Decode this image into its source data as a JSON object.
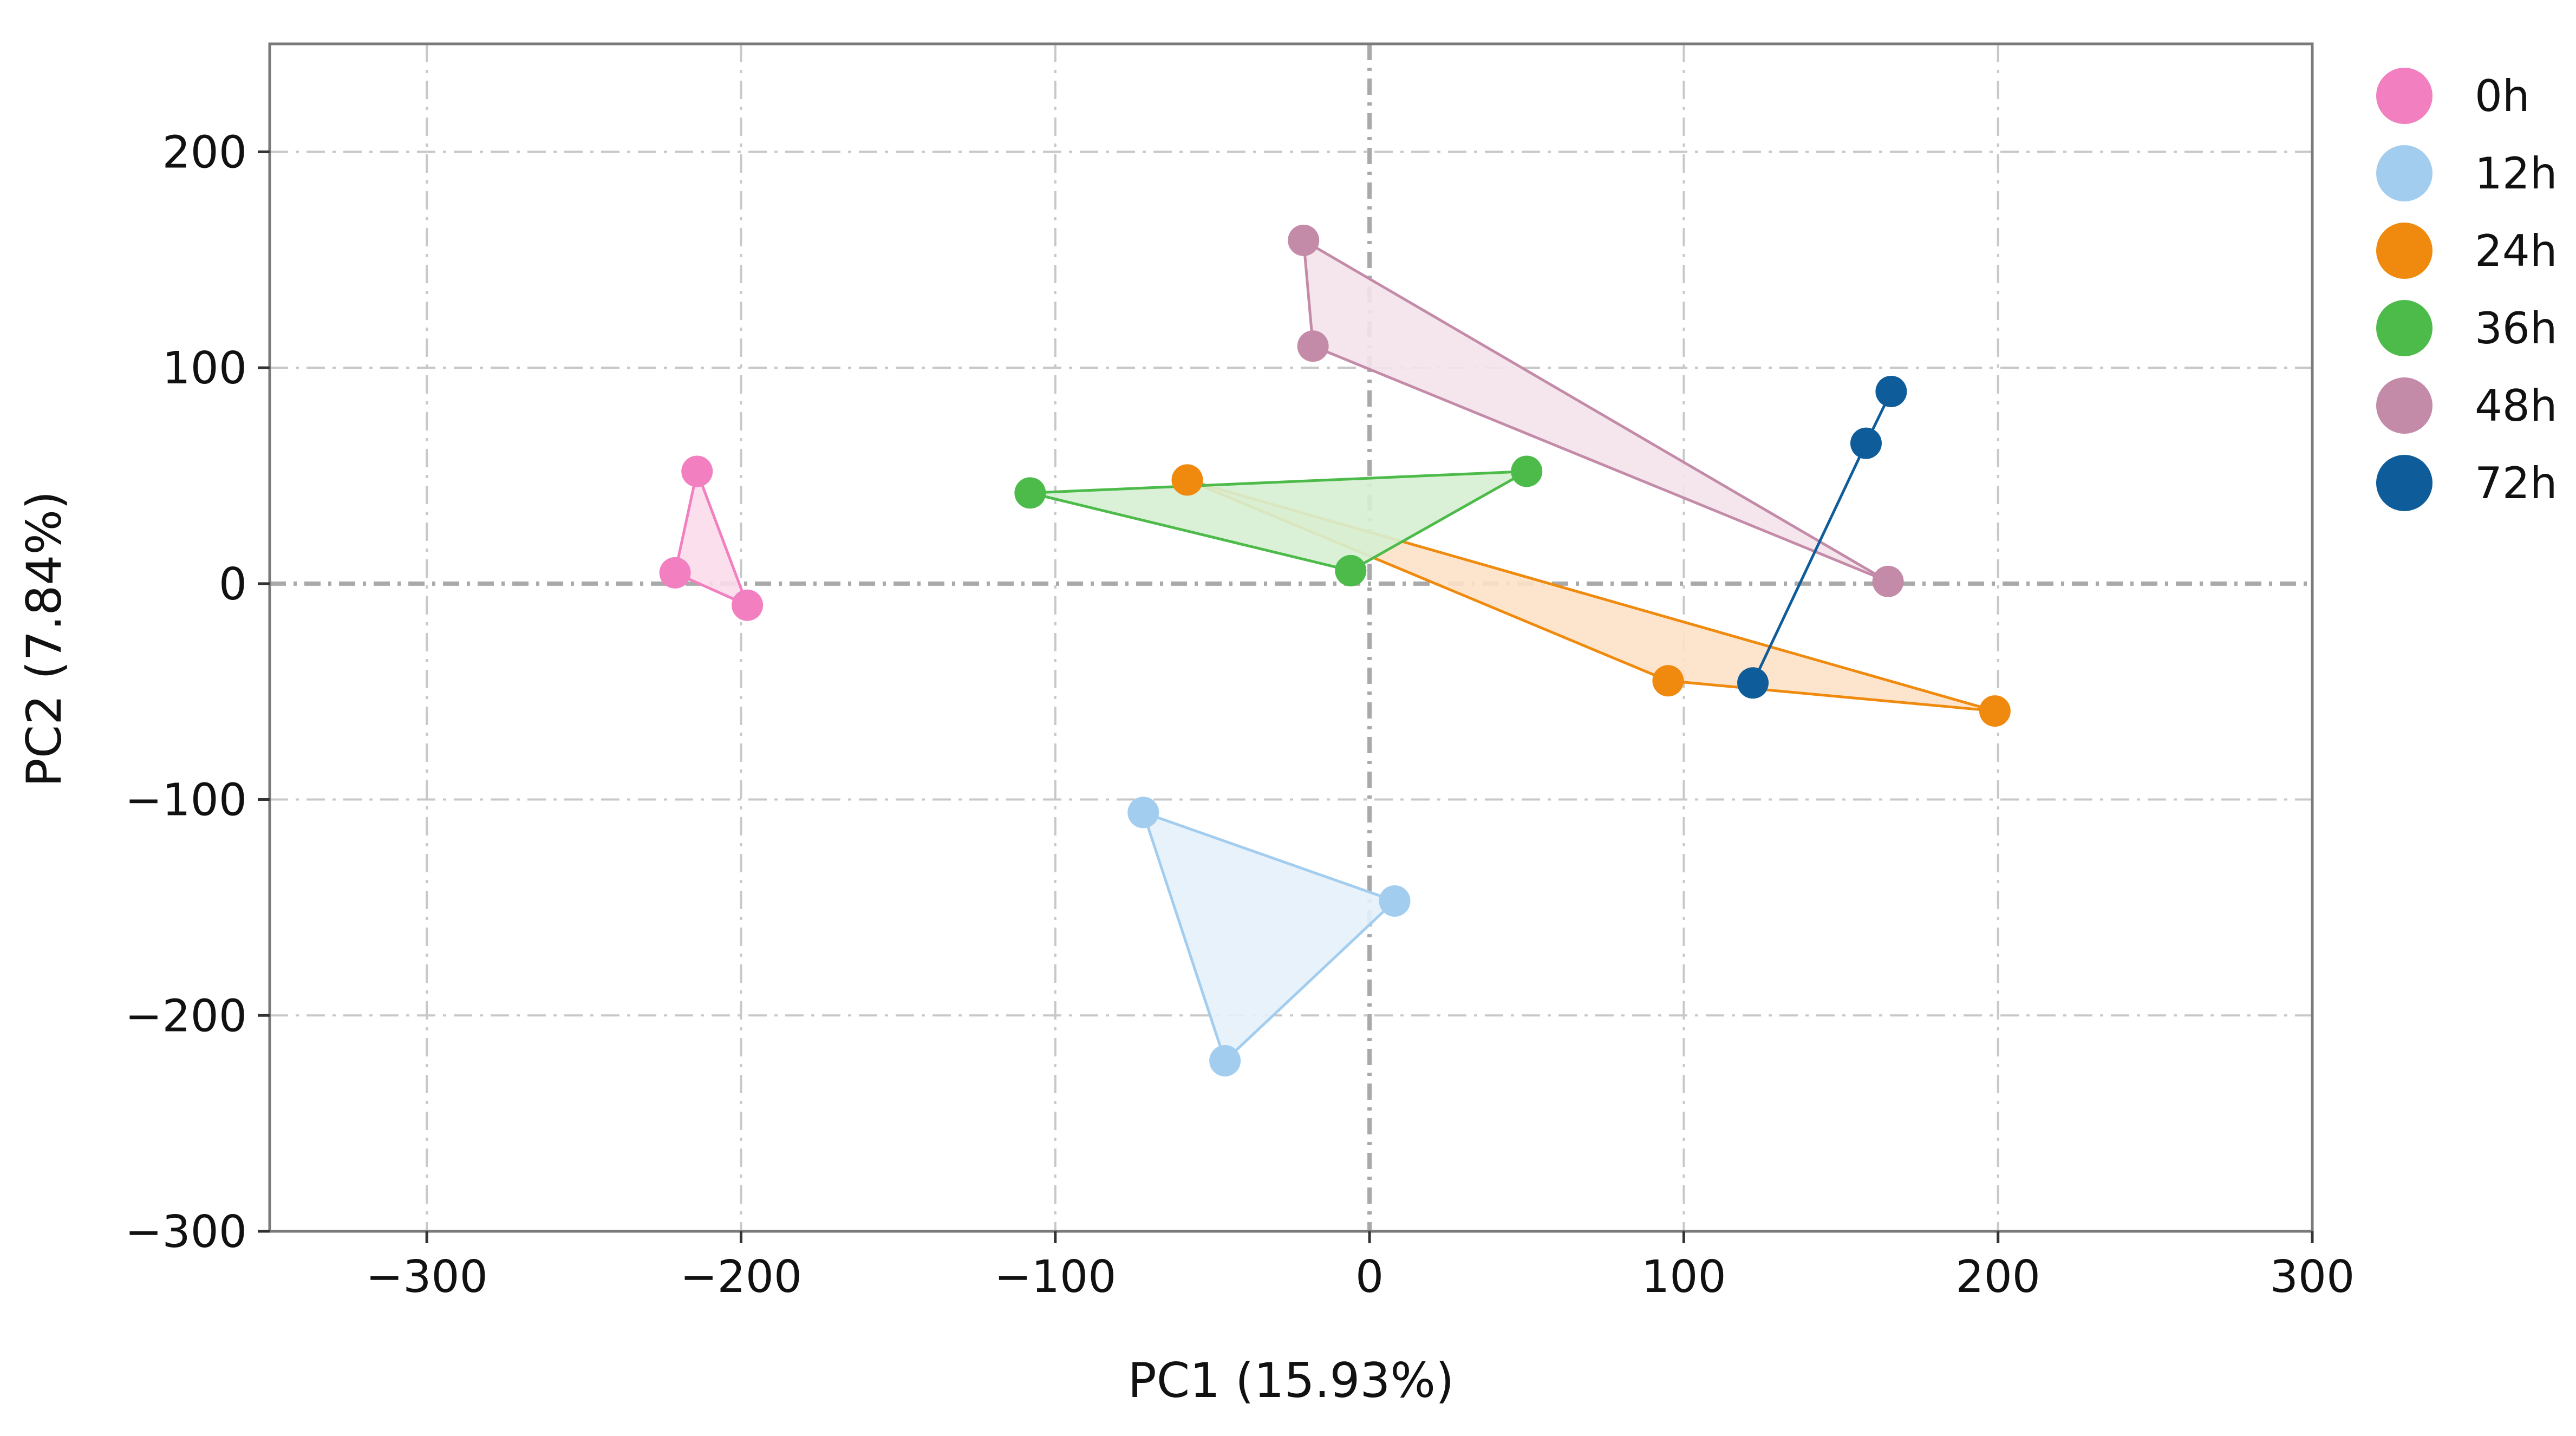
{
  "chart_data": {
    "type": "scatter",
    "title": "",
    "xlabel": "PC1 (15.93%)",
    "ylabel": "PC2 (7.84%)",
    "xlim": [
      -350,
      300
    ],
    "ylim": [
      -300,
      250
    ],
    "xticks": [
      -300,
      -200,
      -100,
      0,
      100,
      200,
      300
    ],
    "yticks": [
      -300,
      -200,
      -100,
      0,
      100,
      200
    ],
    "grid": true,
    "legend_position": "right",
    "series": [
      {
        "name": "0h",
        "color": "#f27fbf",
        "fill": "#fbdcea",
        "points": [
          [
            -221,
            5
          ],
          [
            -214,
            52
          ],
          [
            -198,
            -10
          ]
        ]
      },
      {
        "name": "12h",
        "color": "#a3cdee",
        "fill": "#e6f1fb",
        "points": [
          [
            -72,
            -106
          ],
          [
            8,
            -147
          ],
          [
            -46,
            -221
          ]
        ]
      },
      {
        "name": "24h",
        "color": "#f08a0e",
        "fill": "#fde2c8",
        "points": [
          [
            -58,
            48
          ],
          [
            95,
            -45
          ],
          [
            199,
            -59
          ]
        ]
      },
      {
        "name": "36h",
        "color": "#4dbb4a",
        "fill": "#d6f0d3",
        "points": [
          [
            -108,
            42
          ],
          [
            50,
            52
          ],
          [
            -6,
            6
          ]
        ]
      },
      {
        "name": "48h",
        "color": "#c48ba8",
        "fill": "#f3e3ea",
        "points": [
          [
            -21,
            159
          ],
          [
            -18,
            110
          ],
          [
            165,
            1
          ]
        ]
      },
      {
        "name": "72h",
        "color": "#0e5d9a",
        "fill": "none",
        "points": [
          [
            122,
            -46
          ],
          [
            158,
            65
          ],
          [
            166,
            89
          ]
        ]
      }
    ]
  }
}
